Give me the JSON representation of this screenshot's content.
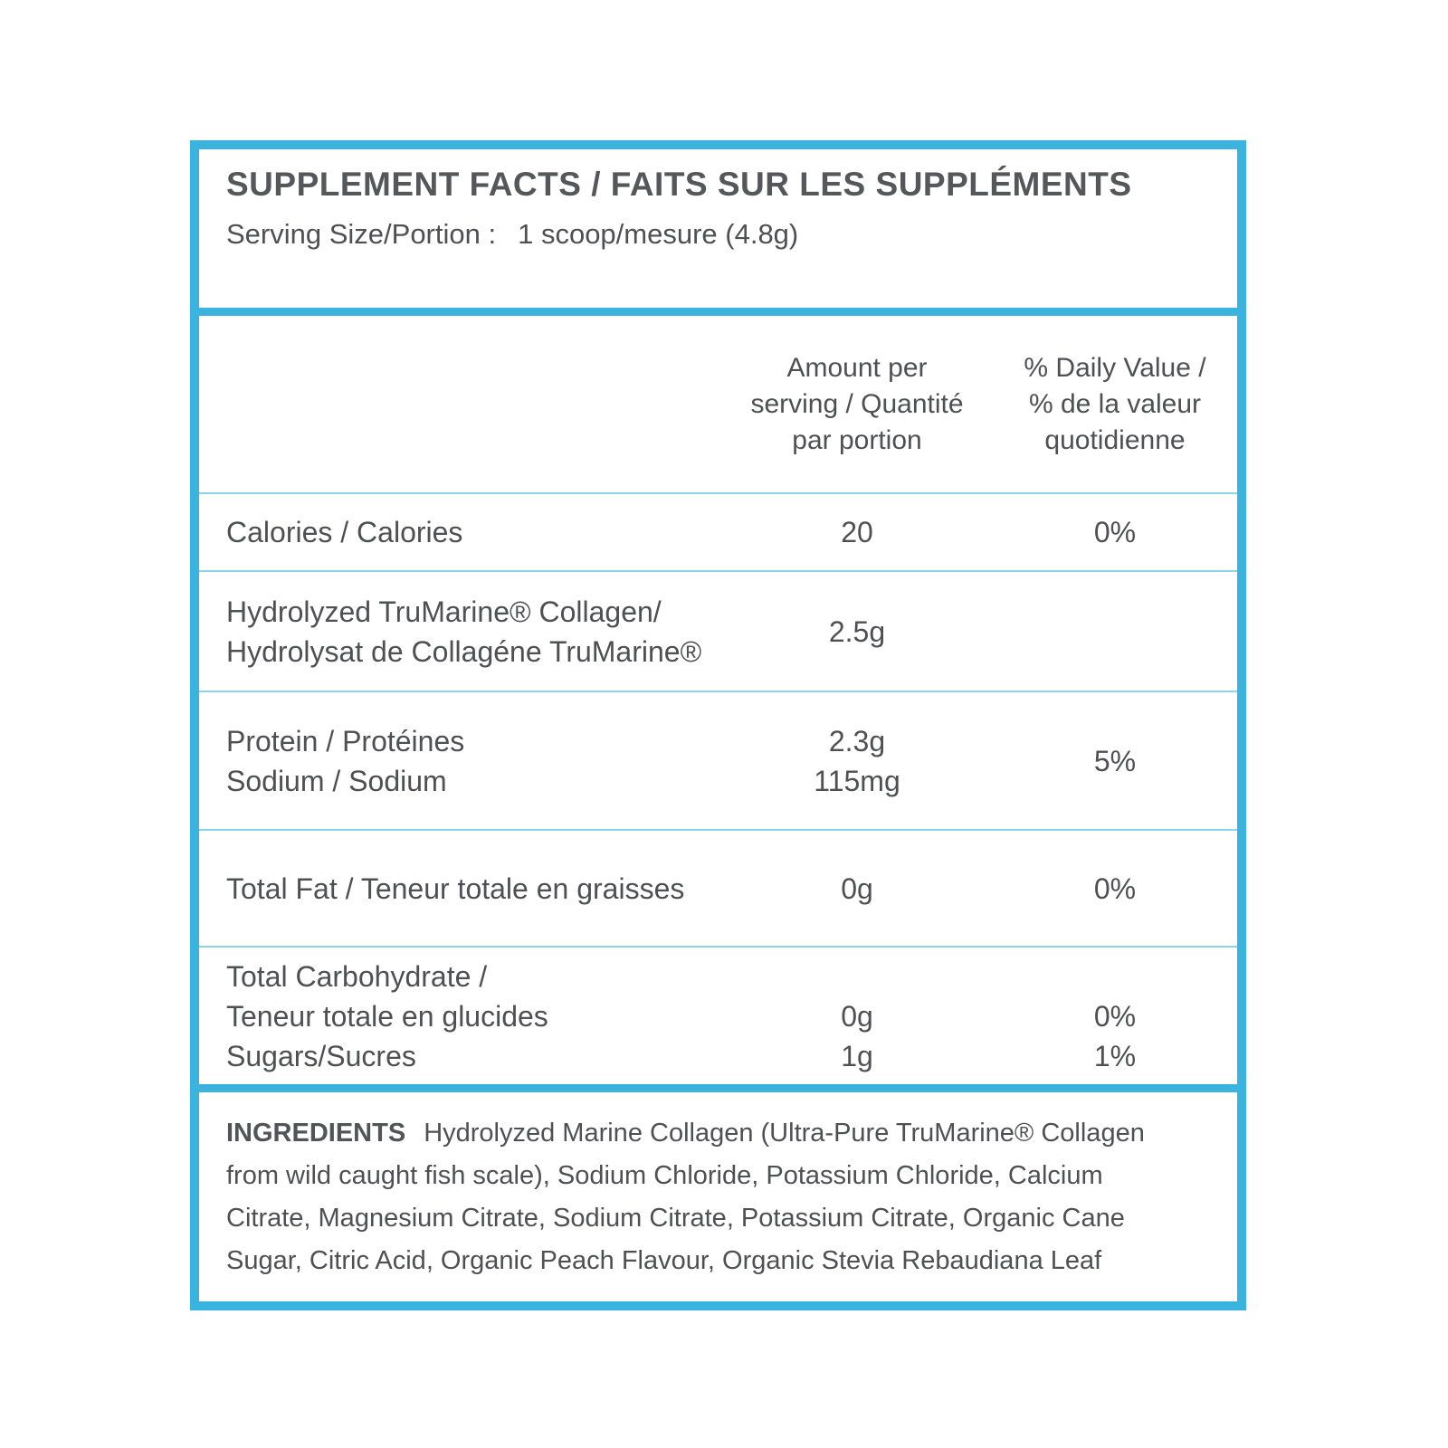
{
  "label": {
    "title": "SUPPLEMENT FACTS / FAITS SUR LES SUPPLÉMENTS",
    "serving": {
      "label": "Serving Size/Portion :",
      "value": "1 scoop/mesure (4.8g)"
    },
    "columns": {
      "amount": [
        "Amount per",
        "serving / Quantité",
        "par portion"
      ],
      "dv": [
        "% Daily Value /",
        "% de la valeur",
        "quotidienne"
      ]
    },
    "rows": [
      {
        "label": [
          "Calories / Calories"
        ],
        "amount": [
          "20"
        ],
        "dv": [
          "0%"
        ]
      },
      {
        "label": [
          "Hydrolyzed TruMarine® Collagen/",
          "Hydrolysat de Collagéne TruMarine®"
        ],
        "amount": [
          "2.5g"
        ],
        "dv": []
      },
      {
        "label": [
          "Protein / Protéines",
          "Sodium / Sodium"
        ],
        "amount": [
          "2.3g",
          "115mg"
        ],
        "dv": [
          "5%"
        ]
      },
      {
        "label": [
          "Total Fat / Teneur totale en graisses"
        ],
        "amount": [
          "0g"
        ],
        "dv": [
          "0%"
        ]
      },
      {
        "label": [
          "Total Carbohydrate /",
          "Teneur totale en glucides",
          "Sugars/Sucres"
        ],
        "amount": [
          "",
          "0g",
          "1g"
        ],
        "dv": [
          "",
          "0%",
          "1%"
        ]
      }
    ],
    "ingredients": {
      "heading": "INGREDIENTS",
      "text": "Hydrolyzed Marine Collagen (Ultra-Pure TruMarine® Collagen from wild caught fish scale), Sodium Chloride, Potassium Chloride, Calcium Citrate, Magnesium Citrate, Sodium Citrate, Potassium Citrate, Organic Cane Sugar, Citric Acid, Organic Peach Flavour, Organic Stevia Rebaudiana Leaf"
    },
    "colors": {
      "border_blue": "#3ab4de",
      "divider_light_blue": "#8bd3ec",
      "text_dark_gray": "#4f5054"
    }
  }
}
